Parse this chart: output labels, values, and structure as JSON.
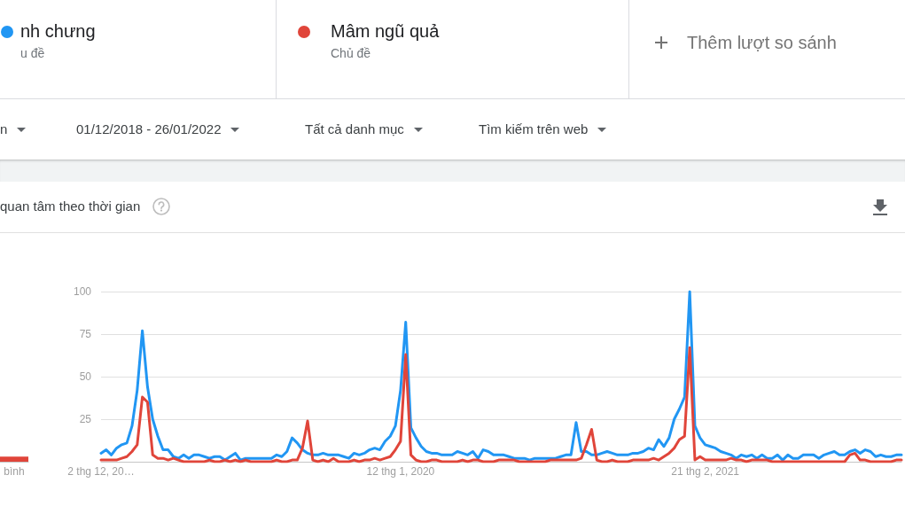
{
  "chart_data": [
    {
      "type": "bar",
      "categories": [
        "bình"
      ],
      "values": [
        3
      ],
      "color": "#e0453a",
      "ylim": [
        0,
        100
      ],
      "tick_labels": "x"
    },
    {
      "type": "line",
      "title": "quan tâm theo thời gian",
      "annotations": [
        "u đề",
        "Chủ đề",
        "Thêm lượt so sánh",
        "n",
        "01/12/2018 - 26/01/2022",
        "Tất cả danh mục",
        "Tìm kiếm trên web"
      ],
      "categories": [
        "2 thg 12, 20…",
        null,
        null,
        null,
        null,
        null,
        null,
        null,
        null,
        null,
        null,
        null,
        null,
        null,
        null,
        null,
        null,
        null,
        null,
        null,
        null,
        null,
        null,
        null,
        null,
        null,
        null,
        null,
        null,
        null,
        null,
        null,
        null,
        null,
        null,
        null,
        null,
        null,
        null,
        null,
        null,
        null,
        null,
        null,
        null,
        null,
        null,
        null,
        null,
        null,
        null,
        null,
        null,
        null,
        null,
        null,
        null,
        null,
        "12 thg 1, 2020",
        null,
        null,
        null,
        null,
        null,
        null,
        null,
        null,
        null,
        null,
        null,
        null,
        null,
        null,
        null,
        null,
        null,
        null,
        null,
        null,
        null,
        null,
        null,
        null,
        null,
        null,
        null,
        null,
        null,
        null,
        null,
        null,
        null,
        null,
        null,
        null,
        null,
        null,
        null,
        null,
        null,
        null,
        null,
        null,
        null,
        null,
        null,
        null,
        null,
        null,
        null,
        null,
        null,
        null,
        null,
        null,
        null,
        null,
        "21 thg 2, 2021",
        null,
        null,
        null,
        null,
        null,
        null,
        null,
        null,
        null,
        null,
        null,
        null,
        null,
        null,
        null,
        null,
        null,
        null,
        null,
        null,
        null,
        null,
        null,
        null,
        null,
        null,
        null,
        null,
        null,
        null,
        null,
        null,
        null,
        null,
        null,
        null,
        null,
        null
      ],
      "series": [
        {
          "name": "nh chưng",
          "color": "#2196f3",
          "values": [
            5,
            7,
            4,
            8,
            10,
            11,
            21,
            42,
            77,
            44,
            25,
            15,
            7,
            7,
            3,
            2,
            4,
            2,
            4,
            4,
            3,
            2,
            3,
            3,
            1,
            3,
            5,
            1,
            2,
            2,
            2,
            2,
            2,
            2,
            4,
            3,
            6,
            14,
            11,
            7,
            5,
            4,
            4,
            5,
            4,
            4,
            4,
            3,
            2,
            5,
            4,
            5,
            7,
            8,
            7,
            12,
            15,
            21,
            42,
            82,
            20,
            14,
            9,
            6,
            5,
            5,
            4,
            4,
            4,
            6,
            5,
            4,
            6,
            2,
            7,
            6,
            4,
            4,
            4,
            3,
            2,
            2,
            2,
            1,
            2,
            2,
            2,
            2,
            2,
            3,
            4,
            4,
            23,
            6,
            6,
            4,
            4,
            5,
            6,
            5,
            4,
            4,
            4,
            5,
            5,
            6,
            8,
            7,
            13,
            9,
            14,
            25,
            31,
            38,
            100,
            21,
            14,
            10,
            9,
            8,
            6,
            5,
            4,
            2,
            4,
            3,
            4,
            2,
            4,
            2,
            2,
            4,
            1,
            4,
            2,
            2,
            4,
            4,
            4,
            2,
            4,
            5,
            6,
            4,
            4,
            6,
            7,
            5,
            7,
            6,
            3,
            4,
            3,
            3,
            4,
            4
          ]
        },
        {
          "name": "Mâm ngũ quả",
          "color": "#e0453a",
          "values": [
            1,
            1,
            1,
            1,
            2,
            3,
            6,
            10,
            38,
            35,
            4,
            2,
            2,
            1,
            2,
            1,
            0,
            0,
            0,
            0,
            0,
            1,
            0,
            0,
            1,
            0,
            1,
            0,
            1,
            0,
            0,
            0,
            0,
            0,
            1,
            0,
            0,
            1,
            1,
            8,
            24,
            1,
            0,
            1,
            0,
            2,
            0,
            0,
            0,
            1,
            0,
            1,
            1,
            2,
            1,
            2,
            3,
            7,
            12,
            63,
            4,
            1,
            0,
            0,
            1,
            1,
            0,
            0,
            0,
            0,
            1,
            0,
            1,
            1,
            0,
            0,
            0,
            1,
            1,
            1,
            1,
            0,
            0,
            0,
            0,
            0,
            0,
            1,
            1,
            1,
            1,
            1,
            1,
            2,
            10,
            19,
            1,
            0,
            0,
            1,
            0,
            0,
            0,
            1,
            1,
            1,
            1,
            2,
            1,
            3,
            5,
            8,
            13,
            15,
            67,
            1,
            3,
            1,
            1,
            1,
            1,
            1,
            2,
            1,
            1,
            0,
            1,
            1,
            1,
            1,
            0,
            0,
            0,
            0,
            0,
            0,
            0,
            0,
            0,
            0,
            0,
            0,
            0,
            0,
            0,
            4,
            5,
            1,
            1,
            0,
            0,
            0,
            0,
            0,
            1,
            1
          ]
        }
      ],
      "ylim": [
        0,
        100
      ],
      "yticks": [
        {
          "value": 0,
          "label": null
        },
        25,
        50,
        75,
        100
      ],
      "grid": "y",
      "legend": "top",
      "marker": "none"
    }
  ]
}
